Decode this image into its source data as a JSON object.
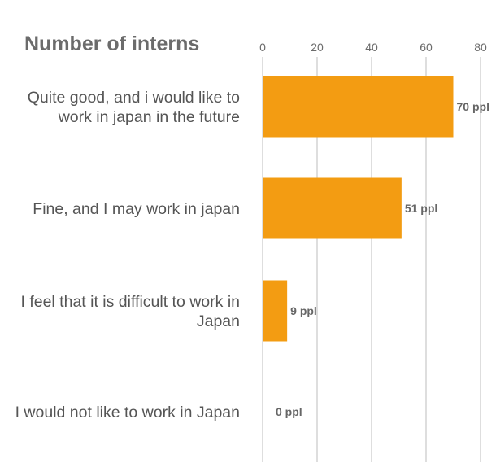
{
  "chart_data": {
    "type": "bar",
    "orientation": "horizontal",
    "title": "Number of interns",
    "categories": [
      [
        "Quite good, and i would like to",
        "work in japan in the future"
      ],
      [
        "Fine, and I may work in japan"
      ],
      [
        "I feel that it is difficult to work in",
        "Japan"
      ],
      [
        "I would not like to work in Japan"
      ]
    ],
    "values": [
      70,
      51,
      9,
      0
    ],
    "value_labels": [
      "70 ppl",
      "51 ppl",
      "9 ppl",
      "0 ppl"
    ],
    "xaxis_ticks": [
      "0",
      "20",
      "40",
      "60",
      "80"
    ],
    "xlim": [
      0,
      80
    ],
    "xaxis_position": "top",
    "grid": true,
    "bar_color": "#F39C12",
    "xlabel": "",
    "ylabel": ""
  }
}
